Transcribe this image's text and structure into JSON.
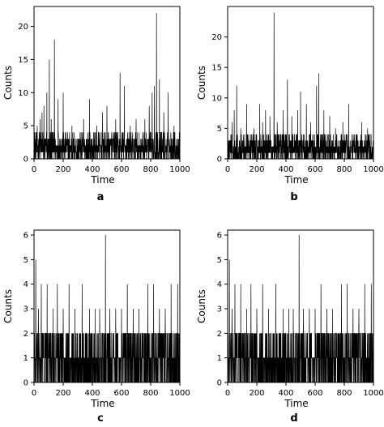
{
  "figure": {
    "panels": [
      {
        "letter": "a",
        "xlabel": "Time",
        "ylabel": "Counts"
      },
      {
        "letter": "b",
        "xlabel": "Time",
        "ylabel": "Counts"
      },
      {
        "letter": "c",
        "xlabel": "Time",
        "ylabel": "Counts"
      },
      {
        "letter": "d",
        "xlabel": "Time",
        "ylabel": "Counts"
      }
    ]
  },
  "chart_data": [
    {
      "panel": "a",
      "type": "line",
      "title": "",
      "xlabel": "Time",
      "ylabel": "Counts",
      "xlim": [
        0,
        1000
      ],
      "ylim": [
        0,
        23
      ],
      "xticks": [
        0,
        200,
        400,
        600,
        800,
        1000
      ],
      "yticks": [
        0,
        5,
        10,
        15,
        20
      ],
      "grid": false,
      "n_points": 1000,
      "typical_range": [
        0,
        4
      ],
      "peaks": [
        {
          "x": 22,
          "y": 5
        },
        {
          "x": 42,
          "y": 6
        },
        {
          "x": 55,
          "y": 7
        },
        {
          "x": 68,
          "y": 8
        },
        {
          "x": 88,
          "y": 10
        },
        {
          "x": 105,
          "y": 15
        },
        {
          "x": 118,
          "y": 6
        },
        {
          "x": 140,
          "y": 18
        },
        {
          "x": 165,
          "y": 9
        },
        {
          "x": 200,
          "y": 10
        },
        {
          "x": 260,
          "y": 5
        },
        {
          "x": 340,
          "y": 6
        },
        {
          "x": 380,
          "y": 9
        },
        {
          "x": 430,
          "y": 5
        },
        {
          "x": 470,
          "y": 7
        },
        {
          "x": 500,
          "y": 8
        },
        {
          "x": 560,
          "y": 6
        },
        {
          "x": 590,
          "y": 13
        },
        {
          "x": 620,
          "y": 11
        },
        {
          "x": 660,
          "y": 5
        },
        {
          "x": 700,
          "y": 6
        },
        {
          "x": 760,
          "y": 6
        },
        {
          "x": 790,
          "y": 8
        },
        {
          "x": 810,
          "y": 10
        },
        {
          "x": 825,
          "y": 11
        },
        {
          "x": 840,
          "y": 22
        },
        {
          "x": 860,
          "y": 12
        },
        {
          "x": 890,
          "y": 7
        },
        {
          "x": 920,
          "y": 10
        },
        {
          "x": 960,
          "y": 5
        }
      ]
    },
    {
      "panel": "b",
      "type": "line",
      "title": "",
      "xlabel": "Time",
      "ylabel": "Counts",
      "xlim": [
        0,
        1000
      ],
      "ylim": [
        0,
        25
      ],
      "xticks": [
        0,
        200,
        400,
        600,
        800,
        1000
      ],
      "yticks": [
        0,
        5,
        10,
        15,
        20
      ],
      "grid": false,
      "n_points": 1000,
      "typical_range": [
        0,
        4
      ],
      "peaks": [
        {
          "x": 30,
          "y": 6
        },
        {
          "x": 45,
          "y": 8
        },
        {
          "x": 62,
          "y": 12
        },
        {
          "x": 90,
          "y": 5
        },
        {
          "x": 130,
          "y": 9
        },
        {
          "x": 180,
          "y": 5
        },
        {
          "x": 220,
          "y": 9
        },
        {
          "x": 240,
          "y": 6
        },
        {
          "x": 260,
          "y": 8
        },
        {
          "x": 290,
          "y": 7
        },
        {
          "x": 318,
          "y": 24
        },
        {
          "x": 340,
          "y": 6
        },
        {
          "x": 380,
          "y": 8
        },
        {
          "x": 410,
          "y": 13
        },
        {
          "x": 440,
          "y": 7
        },
        {
          "x": 480,
          "y": 8
        },
        {
          "x": 500,
          "y": 11
        },
        {
          "x": 540,
          "y": 9
        },
        {
          "x": 570,
          "y": 6
        },
        {
          "x": 610,
          "y": 12
        },
        {
          "x": 625,
          "y": 14
        },
        {
          "x": 660,
          "y": 8
        },
        {
          "x": 700,
          "y": 7
        },
        {
          "x": 740,
          "y": 5
        },
        {
          "x": 790,
          "y": 6
        },
        {
          "x": 830,
          "y": 9
        },
        {
          "x": 870,
          "y": 4
        },
        {
          "x": 920,
          "y": 6
        },
        {
          "x": 960,
          "y": 5
        }
      ]
    },
    {
      "panel": "c",
      "type": "line",
      "title": "",
      "xlabel": "Time",
      "ylabel": "Counts",
      "xlim": [
        0,
        1000
      ],
      "ylim": [
        0,
        6.2
      ],
      "xticks": [
        0,
        200,
        400,
        600,
        800,
        1000
      ],
      "yticks": [
        0,
        1,
        2,
        3,
        4,
        5,
        6
      ],
      "grid": false,
      "n_points": 1000,
      "typical_range": [
        0,
        2
      ],
      "peaks": [
        {
          "x": 12,
          "y": 5
        },
        {
          "x": 30,
          "y": 3
        },
        {
          "x": 50,
          "y": 4
        },
        {
          "x": 90,
          "y": 4
        },
        {
          "x": 130,
          "y": 3
        },
        {
          "x": 160,
          "y": 4
        },
        {
          "x": 200,
          "y": 3
        },
        {
          "x": 240,
          "y": 4
        },
        {
          "x": 280,
          "y": 3
        },
        {
          "x": 330,
          "y": 4
        },
        {
          "x": 380,
          "y": 3
        },
        {
          "x": 420,
          "y": 3
        },
        {
          "x": 450,
          "y": 3
        },
        {
          "x": 490,
          "y": 6
        },
        {
          "x": 520,
          "y": 3
        },
        {
          "x": 560,
          "y": 3
        },
        {
          "x": 600,
          "y": 3
        },
        {
          "x": 640,
          "y": 4
        },
        {
          "x": 680,
          "y": 3
        },
        {
          "x": 720,
          "y": 3
        },
        {
          "x": 780,
          "y": 4
        },
        {
          "x": 820,
          "y": 4
        },
        {
          "x": 860,
          "y": 3
        },
        {
          "x": 900,
          "y": 3
        },
        {
          "x": 940,
          "y": 4
        },
        {
          "x": 985,
          "y": 4
        }
      ]
    },
    {
      "panel": "d",
      "type": "line",
      "title": "",
      "xlabel": "Time",
      "ylabel": "Counts",
      "xlim": [
        0,
        1000
      ],
      "ylim": [
        0,
        6.2
      ],
      "xticks": [
        0,
        200,
        400,
        600,
        800,
        1000
      ],
      "yticks": [
        0,
        1,
        2,
        3,
        4,
        5,
        6
      ],
      "grid": false,
      "n_points": 1000,
      "typical_range": [
        0,
        2
      ],
      "peaks": [
        {
          "x": 12,
          "y": 5
        },
        {
          "x": 30,
          "y": 3
        },
        {
          "x": 50,
          "y": 4
        },
        {
          "x": 90,
          "y": 4
        },
        {
          "x": 130,
          "y": 3
        },
        {
          "x": 160,
          "y": 4
        },
        {
          "x": 200,
          "y": 3
        },
        {
          "x": 240,
          "y": 4
        },
        {
          "x": 280,
          "y": 3
        },
        {
          "x": 330,
          "y": 4
        },
        {
          "x": 380,
          "y": 3
        },
        {
          "x": 420,
          "y": 3
        },
        {
          "x": 450,
          "y": 3
        },
        {
          "x": 490,
          "y": 6
        },
        {
          "x": 520,
          "y": 3
        },
        {
          "x": 560,
          "y": 3
        },
        {
          "x": 600,
          "y": 3
        },
        {
          "x": 640,
          "y": 4
        },
        {
          "x": 680,
          "y": 3
        },
        {
          "x": 720,
          "y": 3
        },
        {
          "x": 780,
          "y": 4
        },
        {
          "x": 820,
          "y": 4
        },
        {
          "x": 860,
          "y": 3
        },
        {
          "x": 900,
          "y": 3
        },
        {
          "x": 940,
          "y": 4
        },
        {
          "x": 985,
          "y": 4
        }
      ]
    }
  ]
}
